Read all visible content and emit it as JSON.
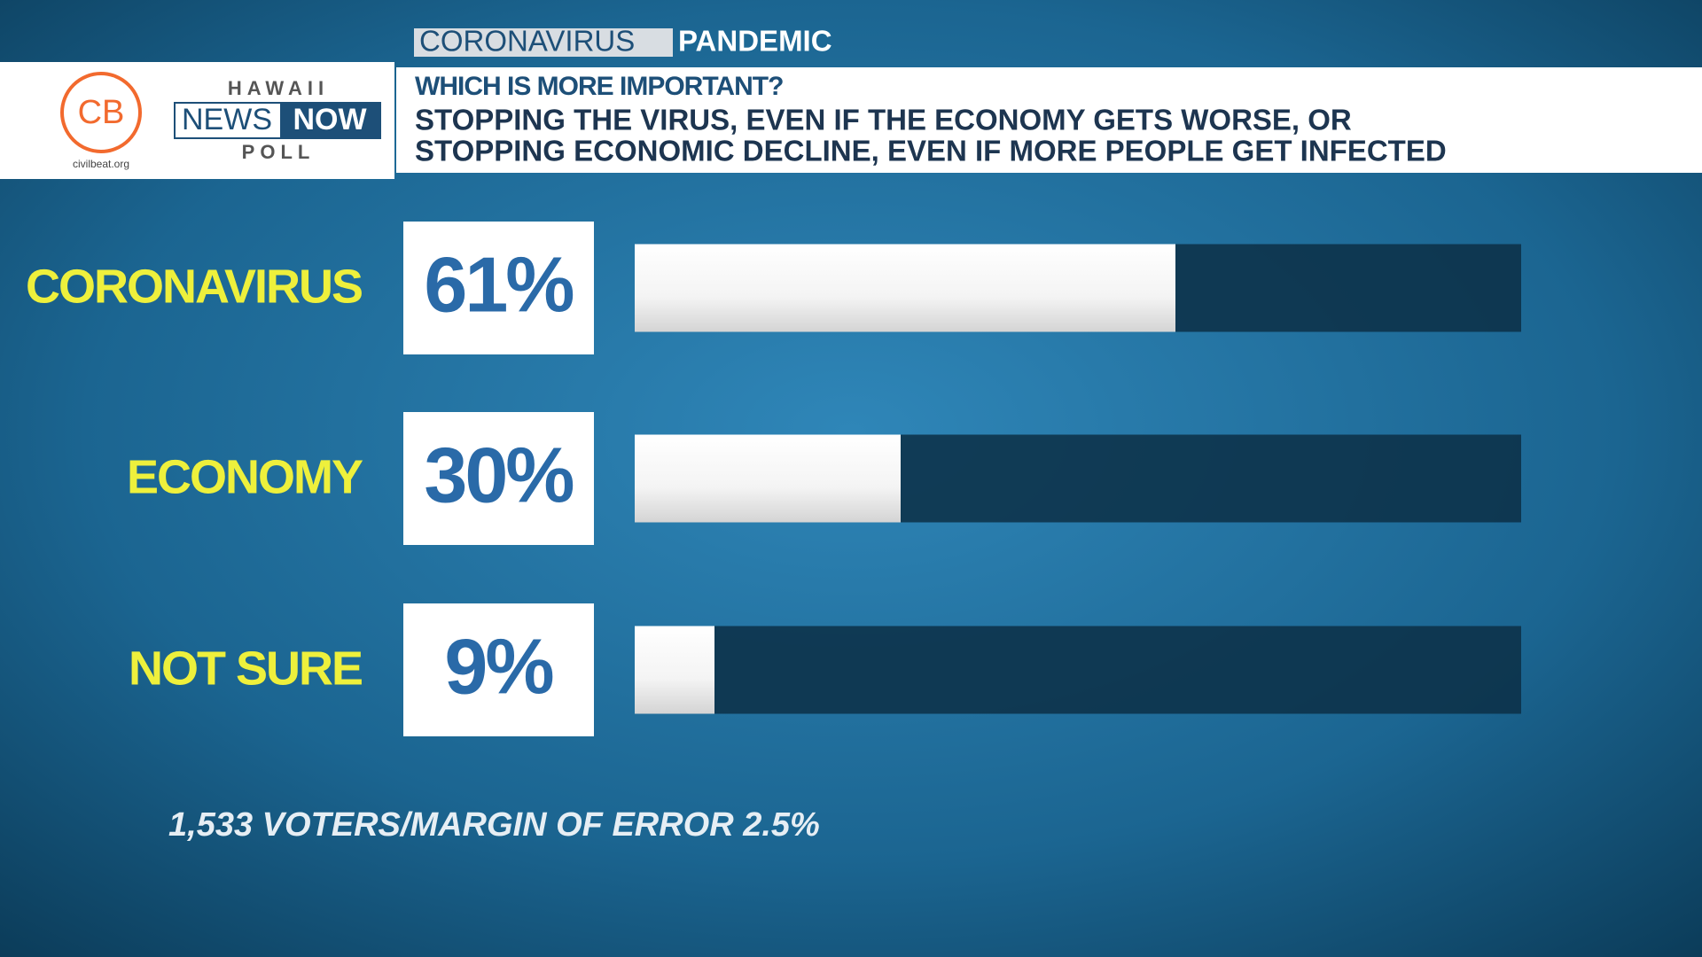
{
  "header": {
    "tag": "CORONAVIRUS",
    "title": "PANDEMIC"
  },
  "logo": {
    "cb": "CB",
    "site": "civilbeat.org",
    "hawaii": "HAWAII",
    "news": "NEWS",
    "now": "NOW",
    "poll": "POLL"
  },
  "chart_data": {
    "type": "bar",
    "orientation": "horizontal",
    "title": "WHICH IS MORE IMPORTANT?",
    "subtitle": [
      "STOPPING THE VIRUS, EVEN IF THE ECONOMY GETS WORSE, OR",
      "STOPPING ECONOMIC DECLINE, EVEN IF MORE PEOPLE GET INFECTED"
    ],
    "categories": [
      "CORONAVIRUS",
      "ECONOMY",
      "NOT SURE"
    ],
    "values": [
      61,
      30,
      9
    ],
    "value_labels": [
      "61%",
      "30%",
      "9%"
    ],
    "xlim": [
      0,
      100
    ],
    "color": "#ffffff",
    "footnote": "1,533 VOTERS/MARGIN OF ERROR 2.5%"
  }
}
